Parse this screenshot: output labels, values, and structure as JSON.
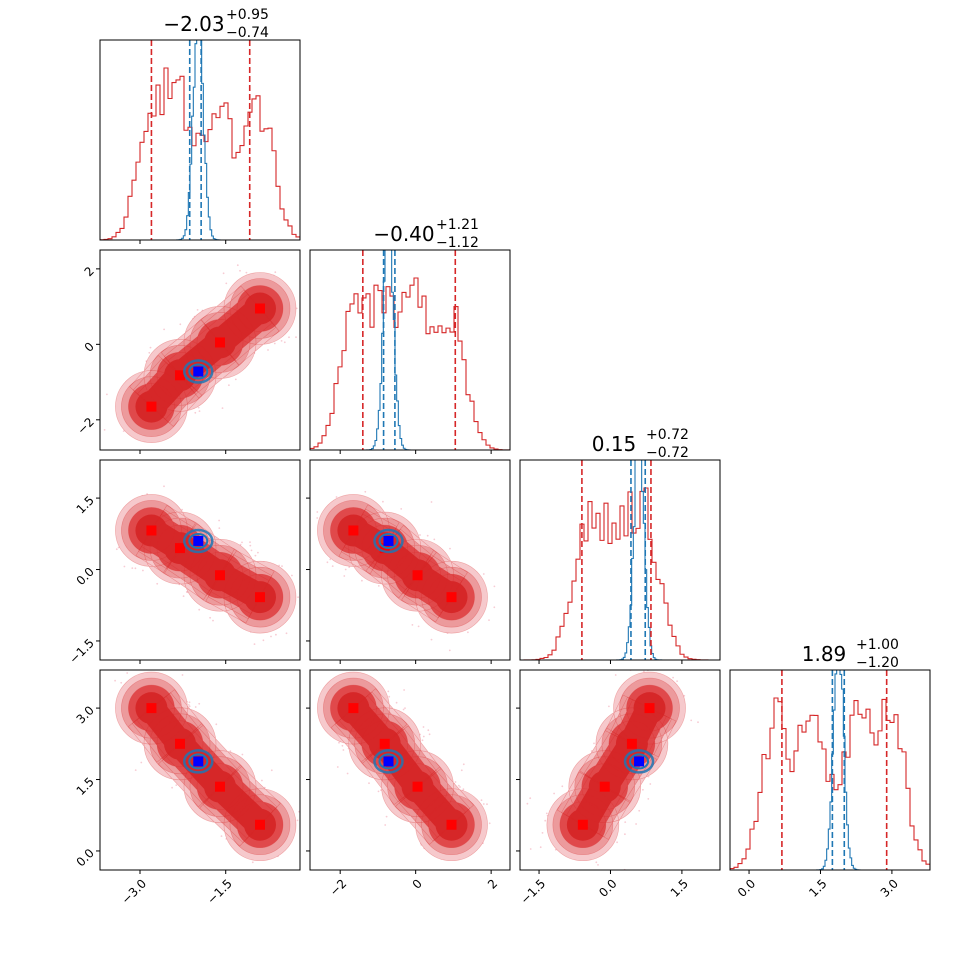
{
  "chart_data": {
    "type": "corner",
    "parameters": [
      {
        "index": 0,
        "range": [
          -3.7,
          -0.2
        ],
        "ticks": [
          -3.0,
          -1.5
        ],
        "tick_labels": [
          "−3.0",
          "−1.5"
        ],
        "title": {
          "median": "−2.03",
          "plus": "+0.95",
          "minus": "−0.74"
        },
        "red_quantiles": [
          -2.8,
          -1.08
        ],
        "blue_quantiles": [
          -2.13,
          -1.93
        ]
      },
      {
        "index": 1,
        "range": [
          -2.8,
          2.5
        ],
        "ticks": [
          -2,
          0,
          2
        ],
        "tick_labels": [
          "−2",
          "0",
          "2"
        ],
        "title": {
          "median": "−0.40",
          "plus": "+1.21",
          "minus": "−1.12"
        },
        "red_quantiles": [
          -1.4,
          1.05
        ],
        "blue_quantiles": [
          -0.85,
          -0.55
        ]
      },
      {
        "index": 2,
        "range": [
          -1.9,
          2.3
        ],
        "ticks": [
          -1.5,
          0.0,
          1.5
        ],
        "tick_labels": [
          "−1.5",
          "0.0",
          "1.5"
        ],
        "title": {
          "median": "0.15",
          "plus": "+0.72",
          "minus": "−0.72"
        },
        "red_quantiles": [
          -0.6,
          0.85
        ],
        "blue_quantiles": [
          0.43,
          0.73
        ]
      },
      {
        "index": 3,
        "range": [
          -0.4,
          3.8
        ],
        "ticks": [
          0.0,
          1.5,
          3.0
        ],
        "tick_labels": [
          "0.0",
          "1.5",
          "3.0"
        ],
        "title": {
          "median": "1.89",
          "plus": "+1.00",
          "minus": "−1.20"
        },
        "red_quantiles": [
          0.69,
          2.89
        ],
        "blue_quantiles": [
          1.75,
          2.0
        ]
      }
    ],
    "red_modes": [
      [
        -2.8,
        -1.65,
        0.82,
        3.0
      ],
      [
        -2.3,
        -0.82,
        0.45,
        2.25
      ],
      [
        -1.6,
        0.05,
        -0.12,
        1.35
      ],
      [
        -0.9,
        0.95,
        -0.58,
        0.55
      ]
    ],
    "blue_point": [
      -1.98,
      -0.72,
      0.6,
      1.88
    ],
    "colors": {
      "red_dist": "#d62728",
      "red_marker": "#ff0000",
      "blue_dist": "#1f77b4",
      "blue_marker": "#0000ff"
    }
  }
}
